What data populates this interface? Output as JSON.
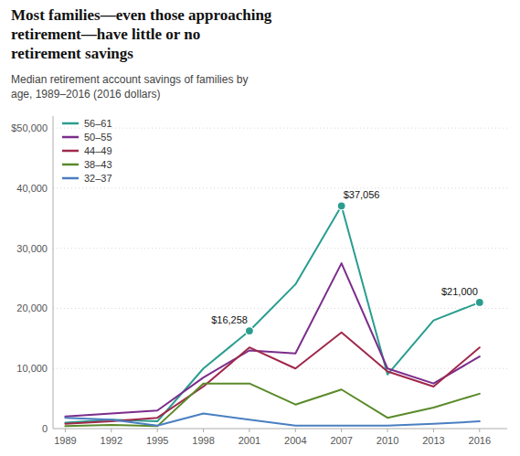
{
  "chart_data": {
    "type": "line",
    "title": "Most families—even those approaching\nretirement—have little or no\nretirement savings",
    "subtitle": "Median retirement account savings of families by\nage, 1989–2016 (2016 dollars)",
    "x": [
      1989,
      1992,
      1995,
      1998,
      2001,
      2004,
      2007,
      2010,
      2013,
      2016
    ],
    "series": [
      {
        "name": "56–61",
        "color": "#2a9d8f",
        "values": [
          1000,
          1500,
          1200,
          10000,
          16258,
          24000,
          37056,
          9000,
          18000,
          21000
        ]
      },
      {
        "name": "50–55",
        "color": "#7b2d8b",
        "values": [
          2000,
          2500,
          3000,
          8500,
          13000,
          12500,
          27500,
          10000,
          7500,
          12000
        ]
      },
      {
        "name": "44–49",
        "color": "#a0284a",
        "values": [
          800,
          1200,
          1800,
          7000,
          13500,
          10000,
          16000,
          9500,
          7000,
          13500
        ]
      },
      {
        "name": "38–43",
        "color": "#5a8a2a",
        "values": [
          400,
          600,
          400,
          7500,
          7500,
          4000,
          6500,
          1800,
          3500,
          5800
        ]
      },
      {
        "name": "32–37",
        "color": "#4a7fc1",
        "values": [
          1800,
          1500,
          500,
          2500,
          1500,
          500,
          500,
          500,
          800,
          1200
        ]
      }
    ],
    "annotations": [
      {
        "series": "56–61",
        "x": 2001,
        "value": 16258,
        "label": "$16,258"
      },
      {
        "series": "56–61",
        "x": 2007,
        "value": 37056,
        "label": "$37,056"
      },
      {
        "series": "56–61",
        "x": 2016,
        "value": 21000,
        "label": "$21,000"
      }
    ],
    "xlim": [
      1988.2,
      2017.8
    ],
    "xticks": [
      1989,
      1992,
      1995,
      1998,
      2001,
      2004,
      2007,
      2010,
      2013,
      2016
    ],
    "ylim": [
      0,
      52000
    ],
    "yticks": [
      0,
      {
        "value": 10000,
        "label": "10,000"
      },
      {
        "value": 20000,
        "label": "20,000"
      },
      {
        "value": 30000,
        "label": "30,000"
      },
      {
        "value": 40000,
        "label": "40,000"
      },
      {
        "value": 50000,
        "label": "$50,000"
      }
    ],
    "grid": true,
    "legend": "upper left"
  }
}
